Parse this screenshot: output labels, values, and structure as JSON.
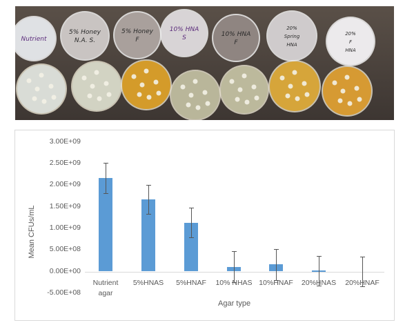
{
  "photo": {
    "description": "Petri dishes: top row lids with handwritten labels, bottom row agar plates",
    "lid_labels": [
      {
        "lines": [
          "Nutrient"
        ]
      },
      {
        "lines": [
          "5% Honey",
          "N.A. S."
        ]
      },
      {
        "lines": [
          "5% Honey",
          "F"
        ]
      },
      {
        "lines": [
          "10% HNA",
          "S"
        ]
      },
      {
        "lines": [
          "10% HNA",
          "F"
        ]
      },
      {
        "lines": [
          "20%",
          "Spring",
          "HNA"
        ]
      },
      {
        "lines": [
          "20%",
          "F",
          "HNA"
        ]
      }
    ],
    "plate_colors": [
      "#d9dcd6",
      "#d2d3c3",
      "#d49b2a",
      "#b9b69a",
      "#bcb99c",
      "#d6a53a",
      "#d69a33"
    ]
  },
  "chart_data": {
    "type": "bar",
    "title": "",
    "xlabel": "Agar type",
    "ylabel": "Mean CFUs/mL",
    "categories": [
      "Nutrient agar",
      "5%HNAS",
      "5%HNAF",
      "10% NHAS",
      "10%HNAF",
      "20%HNAS",
      "20%HNAF"
    ],
    "category_lines": [
      [
        "Nutrient",
        "agar"
      ],
      [
        "5%HNAS"
      ],
      [
        "5%HNAF"
      ],
      [
        "10% NHAS"
      ],
      [
        "10%HNAF"
      ],
      [
        "20%HNAS"
      ],
      [
        "20%HNAF"
      ]
    ],
    "values": [
      2170000000,
      1670000000,
      1130000000,
      110000000,
      160000000,
      15000000,
      0
    ],
    "error": [
      350000000,
      340000000,
      340000000,
      360000000,
      360000000,
      340000000,
      340000000
    ],
    "ylim": [
      -500000000,
      3000000000
    ],
    "yticks": [
      3000000000,
      2500000000,
      2000000000,
      1500000000,
      1000000000,
      500000000,
      0,
      -500000000
    ],
    "ytick_labels": [
      "3.00E+09",
      "2.50E+09",
      "2.00E+09",
      "1.50E+09",
      "1.00E+09",
      "5.00E+08",
      "0.00E+00",
      "-5.00E+08"
    ],
    "grid": false,
    "legend": "none",
    "bar_color": "#5b9bd5",
    "error_bar_color": "#555555"
  }
}
